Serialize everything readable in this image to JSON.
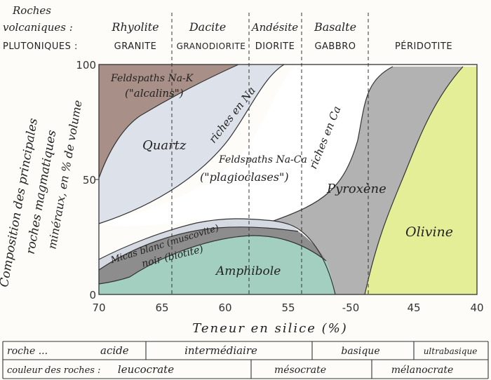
{
  "header": {
    "volcanic_label_1": "Roches",
    "volcanic_label_2": "volcaniques :",
    "plutonic_label": "PLUTONIQUES :",
    "rocks": [
      {
        "volcanic": "Rhyolite",
        "plutonic": "GRANITE"
      },
      {
        "volcanic": "Dacite",
        "plutonic": "GRANODIORITE"
      },
      {
        "volcanic": "Andésite",
        "plutonic": "DIORITE"
      },
      {
        "volcanic": "Basalte",
        "plutonic": "GABBRO"
      },
      {
        "volcanic": "",
        "plutonic": "PÉRIDOTITE"
      }
    ]
  },
  "y_axis": {
    "title_1": "Composition des principales",
    "title_2": "roches magmatiques",
    "title_3": "minéraux, en % de volume",
    "ticks": [
      "100",
      "50",
      "0"
    ]
  },
  "x_axis": {
    "title": "Teneur en silice (%)",
    "ticks": [
      "70",
      "65",
      "60",
      "55",
      "-50",
      "45",
      "40"
    ]
  },
  "regions": {
    "alkali_feldspar_1": "Feldspaths Na-K",
    "alkali_feldspar_2": "(\"alcalins\")",
    "quartz": "Quartz",
    "na_rich": "riches en Na",
    "plagio_1": "Feldspaths Na-Ca",
    "plagio_2": "(\"plagioclases\")",
    "ca_rich": "riches en Ca",
    "pyroxene": "Pyroxène",
    "muscovite": "Micas blanc (muscovite)",
    "biotite": "noir (biotite)",
    "amphibole": "Amphibole",
    "olivine": "Olivine"
  },
  "colors": {
    "alkali": "#a89088",
    "quartz": "#dde1ea",
    "plagioclase": "#ffffff",
    "pyroxene": "#b2b2b2",
    "olivine": "#e4ee96",
    "amphibole": "#a2cfc0",
    "biotite": "#8d8d8d",
    "muscovite": "#d5d9e2"
  },
  "footer": {
    "rock_row_label": "roche ...",
    "acid": "acide",
    "intermediate": "intermédiaire",
    "basic": "basique",
    "ultrabasic": "ultrabasique",
    "color_row_label": "couleur des roches :",
    "leucocrate": "leucocrate",
    "mesocrate": "mésocrate",
    "melanocrate": "mélanocrate"
  }
}
